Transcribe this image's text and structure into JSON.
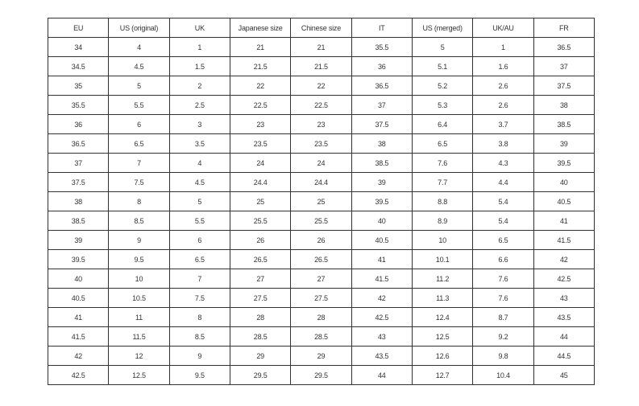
{
  "table": {
    "headers": [
      "EU",
      "US (original)",
      "UK",
      "Japanese size",
      "Chinese size",
      "IT",
      "US (merged)",
      "UK/AU",
      "FR"
    ],
    "rows": [
      [
        "34",
        "4",
        "1",
        "21",
        "21",
        "35.5",
        "5",
        "1",
        "36.5"
      ],
      [
        "34.5",
        "4.5",
        "1.5",
        "21.5",
        "21.5",
        "36",
        "5.1",
        "1.6",
        "37"
      ],
      [
        "35",
        "5",
        "2",
        "22",
        "22",
        "36.5",
        "5.2",
        "2.6",
        "37.5"
      ],
      [
        "35.5",
        "5.5",
        "2.5",
        "22.5",
        "22.5",
        "37",
        "5.3",
        "2.6",
        "38"
      ],
      [
        "36",
        "6",
        "3",
        "23",
        "23",
        "37.5",
        "6.4",
        "3.7",
        "38.5"
      ],
      [
        "36.5",
        "6.5",
        "3.5",
        "23.5",
        "23.5",
        "38",
        "6.5",
        "3.8",
        "39"
      ],
      [
        "37",
        "7",
        "4",
        "24",
        "24",
        "38.5",
        "7.6",
        "4.3",
        "39.5"
      ],
      [
        "37.5",
        "7.5",
        "4.5",
        "24.4",
        "24.4",
        "39",
        "7.7",
        "4.4",
        "40"
      ],
      [
        "38",
        "8",
        "5",
        "25",
        "25",
        "39.5",
        "8.8",
        "5.4",
        "40.5"
      ],
      [
        "38.5",
        "8.5",
        "5.5",
        "25.5",
        "25.5",
        "40",
        "8.9",
        "5.4",
        "41"
      ],
      [
        "39",
        "9",
        "6",
        "26",
        "26",
        "40.5",
        "10",
        "6.5",
        "41.5"
      ],
      [
        "39.5",
        "9.5",
        "6.5",
        "26.5",
        "26.5",
        "41",
        "10.1",
        "6.6",
        "42"
      ],
      [
        "40",
        "10",
        "7",
        "27",
        "27",
        "41.5",
        "11.2",
        "7.6",
        "42.5"
      ],
      [
        "40.5",
        "10.5",
        "7.5",
        "27.5",
        "27.5",
        "42",
        "11.3",
        "7.6",
        "43"
      ],
      [
        "41",
        "11",
        "8",
        "28",
        "28",
        "42.5",
        "12.4",
        "8.7",
        "43.5"
      ],
      [
        "41.5",
        "11.5",
        "8.5",
        "28.5",
        "28.5",
        "43",
        "12.5",
        "9.2",
        "44"
      ],
      [
        "42",
        "12",
        "9",
        "29",
        "29",
        "43.5",
        "12.6",
        "9.8",
        "44.5"
      ],
      [
        "42.5",
        "12.5",
        "9.5",
        "29.5",
        "29.5",
        "44",
        "12.7",
        "10.4",
        "45"
      ]
    ]
  }
}
